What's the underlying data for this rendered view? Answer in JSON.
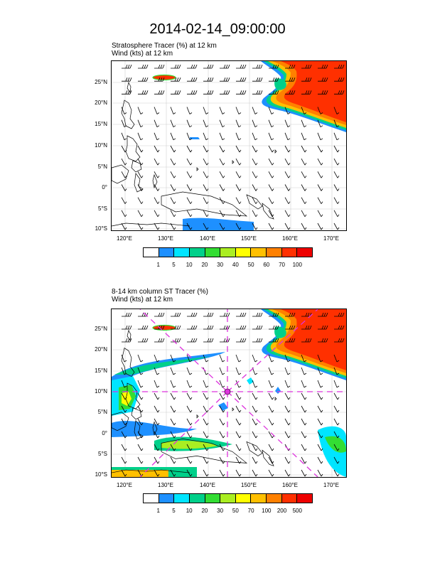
{
  "title": "2014-02-14_09:00:00",
  "panel1": {
    "subtitle_line1": "Stratosphere Tracer   (%)     at   12 km",
    "subtitle_line2": "Wind   (kts)      at   12 km",
    "colorbar_labels": [
      "1",
      "5",
      "10",
      "20",
      "30",
      "40",
      "50",
      "60",
      "70",
      "100"
    ]
  },
  "panel2": {
    "subtitle_line1": "8-14 km column ST Tracer   (%)",
    "subtitle_line2": "Wind   (kts)      at   12 km",
    "colorbar_labels": [
      "1",
      "5",
      "10",
      "20",
      "30",
      "50",
      "70",
      "100",
      "200",
      "500"
    ]
  },
  "lat_labels": [
    "25°N",
    "20°N",
    "15°N",
    "10°N",
    "5°N",
    "0°",
    "5°S",
    "10°S"
  ],
  "lon_labels": [
    "120°E",
    "130°E",
    "140°E",
    "150°E",
    "160°E",
    "170°E"
  ],
  "colors": {
    "scale": [
      "#ffffff",
      "#1e90ff",
      "#00e5ff",
      "#00d08a",
      "#33dd33",
      "#aaee22",
      "#ffff00",
      "#ffc000",
      "#ff8000",
      "#ff3000",
      "#ee0000"
    ],
    "track": "#dd33dd",
    "coast": "#000000"
  }
}
